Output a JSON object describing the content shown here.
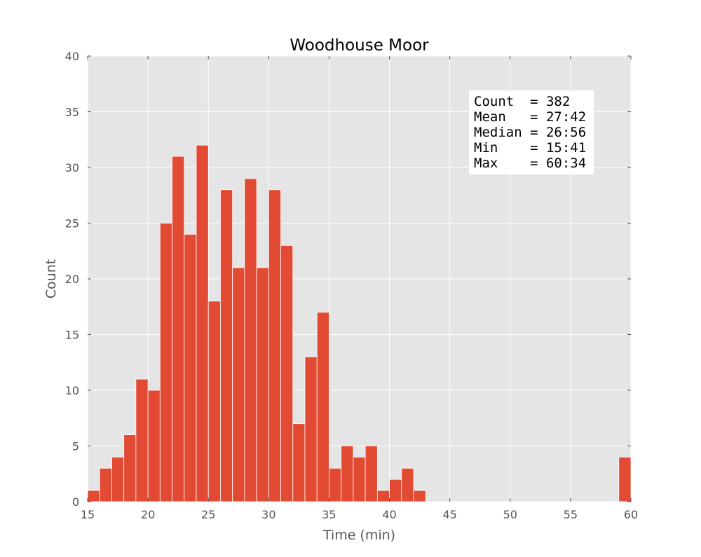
{
  "chart_data": {
    "type": "bar",
    "title": "Woodhouse Moor",
    "xlabel": "Time (min)",
    "ylabel": "Count",
    "xlim": [
      15,
      60
    ],
    "ylim": [
      0,
      40
    ],
    "grid": true,
    "x_ticks": [
      15,
      20,
      25,
      30,
      35,
      40,
      45,
      50,
      55,
      60
    ],
    "y_ticks": [
      0,
      5,
      10,
      15,
      20,
      25,
      30,
      35,
      40
    ],
    "bar_color": "#e24a33",
    "plot_background": "#e5e5e5",
    "bins": [
      {
        "start": 15.0,
        "end": 16.0,
        "count": 1
      },
      {
        "start": 16.0,
        "end": 17.0,
        "count": 3
      },
      {
        "start": 17.0,
        "end": 18.0,
        "count": 4
      },
      {
        "start": 18.0,
        "end": 19.0,
        "count": 6
      },
      {
        "start": 19.0,
        "end": 20.0,
        "count": 11
      },
      {
        "start": 20.0,
        "end": 21.0,
        "count": 10
      },
      {
        "start": 21.0,
        "end": 22.0,
        "count": 25
      },
      {
        "start": 22.0,
        "end": 23.0,
        "count": 31
      },
      {
        "start": 23.0,
        "end": 24.0,
        "count": 24
      },
      {
        "start": 24.0,
        "end": 25.0,
        "count": 32
      },
      {
        "start": 25.0,
        "end": 26.0,
        "count": 18
      },
      {
        "start": 26.0,
        "end": 27.0,
        "count": 28
      },
      {
        "start": 27.0,
        "end": 28.0,
        "count": 21
      },
      {
        "start": 28.0,
        "end": 29.0,
        "count": 29
      },
      {
        "start": 29.0,
        "end": 30.0,
        "count": 21
      },
      {
        "start": 30.0,
        "end": 31.0,
        "count": 28
      },
      {
        "start": 31.0,
        "end": 32.0,
        "count": 23
      },
      {
        "start": 32.0,
        "end": 33.0,
        "count": 7
      },
      {
        "start": 33.0,
        "end": 34.0,
        "count": 13
      },
      {
        "start": 34.0,
        "end": 35.0,
        "count": 17
      },
      {
        "start": 35.0,
        "end": 36.0,
        "count": 3
      },
      {
        "start": 36.0,
        "end": 37.0,
        "count": 5
      },
      {
        "start": 37.0,
        "end": 38.0,
        "count": 4
      },
      {
        "start": 38.0,
        "end": 39.0,
        "count": 5
      },
      {
        "start": 39.0,
        "end": 40.0,
        "count": 1
      },
      {
        "start": 40.0,
        "end": 41.0,
        "count": 2
      },
      {
        "start": 41.0,
        "end": 42.0,
        "count": 3
      },
      {
        "start": 42.0,
        "end": 43.0,
        "count": 1
      },
      {
        "start": 59.0,
        "end": 60.0,
        "count": 4
      }
    ],
    "annotation": {
      "placement": "top-right",
      "lines": [
        "Count  = 382",
        "Mean   = 27:42",
        "Median = 26:56",
        "Min    = 15:41",
        "Max    = 60:34"
      ]
    }
  }
}
